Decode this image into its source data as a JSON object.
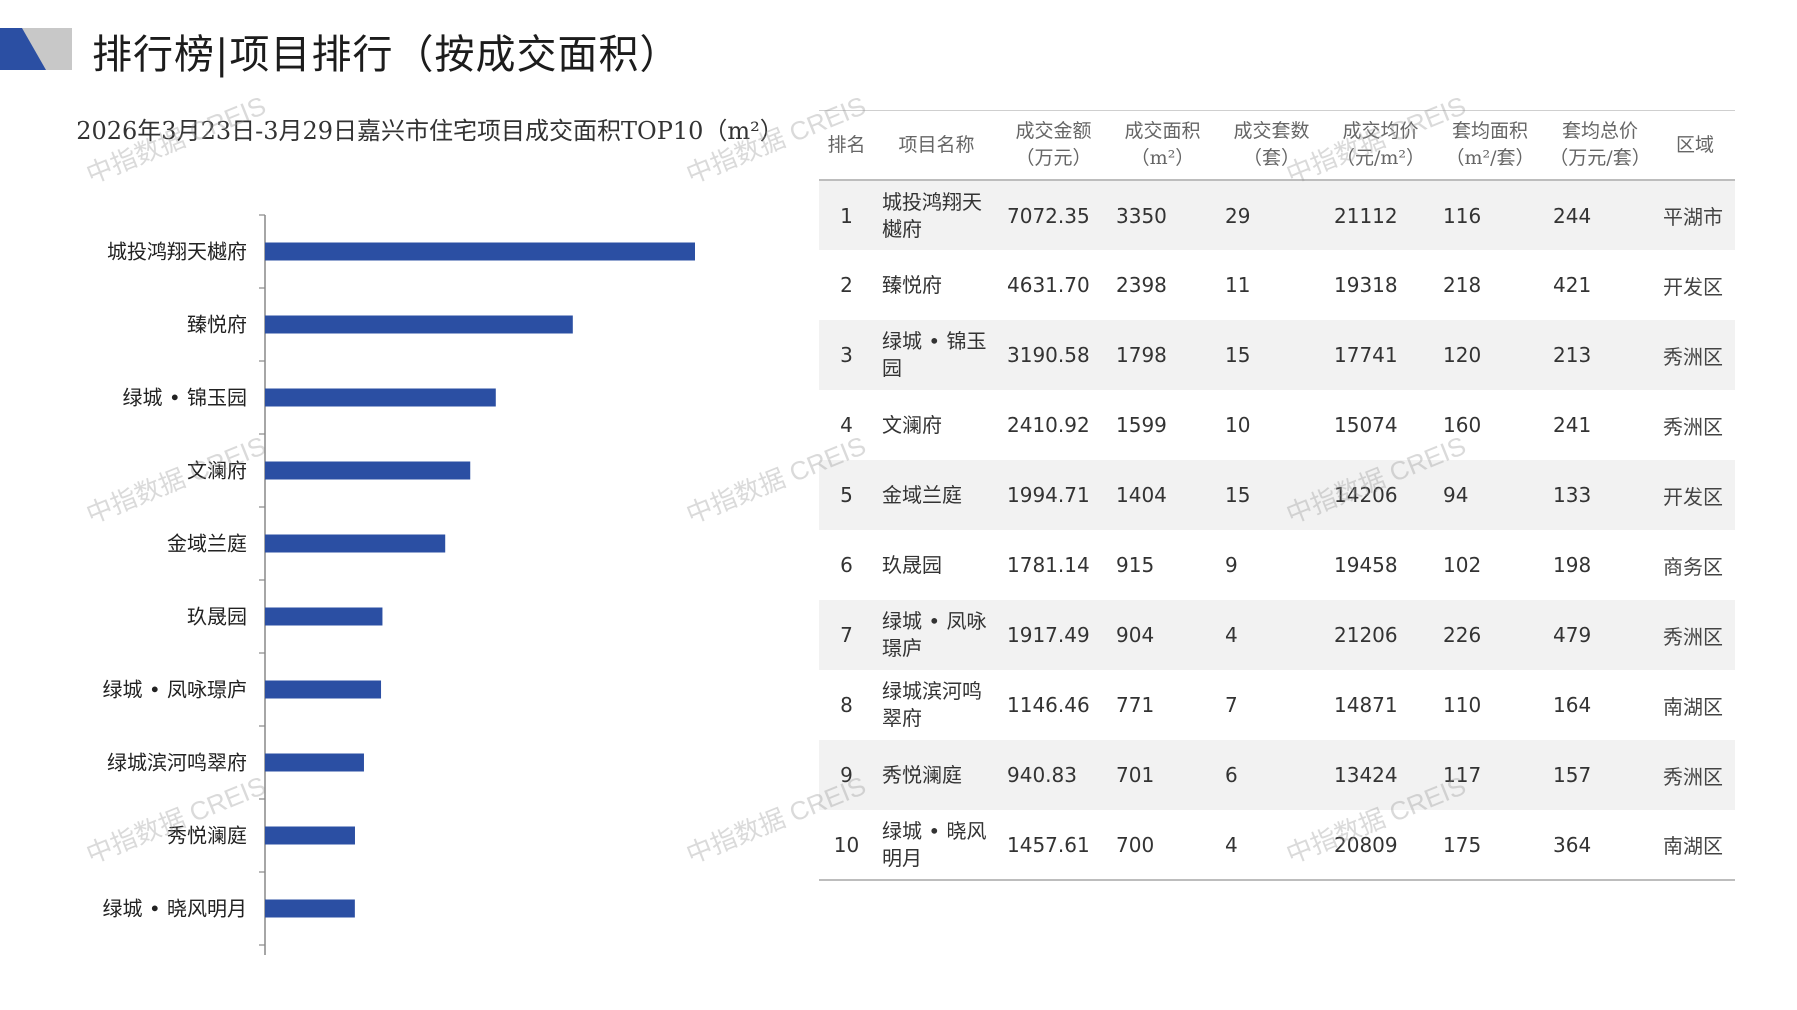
{
  "header": {
    "title": "排行榜|项目排行（按成交面积）",
    "colors": {
      "blue": "#2b4fa3",
      "gray": "#c8c8c8"
    }
  },
  "chart_data": {
    "type": "bar",
    "orientation": "horizontal",
    "title": "2026年3月23日-3月29日嘉兴市住宅项目成交面积TOP10（m²）",
    "categories": [
      "城投鸿翔天樾府",
      "臻悦府",
      "绿城 • 锦玉园",
      "文澜府",
      "金域兰庭",
      "玖晟园",
      "绿城 • 凤咏璟庐",
      "绿城滨河鸣翠府",
      "秀悦澜庭",
      "绿城 • 晓风明月"
    ],
    "values": [
      3350,
      2398,
      1798,
      1599,
      1404,
      915,
      904,
      771,
      701,
      700
    ],
    "bar_color": "#2b4fa3",
    "grid": false
  },
  "table": {
    "headers": [
      {
        "key": "rank",
        "label": "排名"
      },
      {
        "key": "name",
        "label": "项目名称"
      },
      {
        "key": "amount",
        "label": "成交金额（万元）"
      },
      {
        "key": "area",
        "label": "成交面积（m²）"
      },
      {
        "key": "units",
        "label": "成交套数（套）"
      },
      {
        "key": "price",
        "label": "成交均价（元/m²）"
      },
      {
        "key": "avg_area",
        "label": "套均面积（m²/套）"
      },
      {
        "key": "avg_total",
        "label": "套均总价（万元/套）"
      },
      {
        "key": "district",
        "label": "区域"
      }
    ],
    "rows": [
      {
        "rank": "1",
        "name": "城投鸿翔天樾府",
        "amount": "7072.35",
        "area": "3350",
        "units": "29",
        "price": "21112",
        "avg_area": "116",
        "avg_total": "244",
        "district": "平湖市"
      },
      {
        "rank": "2",
        "name": "臻悦府",
        "amount": "4631.70",
        "area": "2398",
        "units": "11",
        "price": "19318",
        "avg_area": "218",
        "avg_total": "421",
        "district": "开发区"
      },
      {
        "rank": "3",
        "name": "绿城 • 锦玉园",
        "amount": "3190.58",
        "area": "1798",
        "units": "15",
        "price": "17741",
        "avg_area": "120",
        "avg_total": "213",
        "district": "秀洲区"
      },
      {
        "rank": "4",
        "name": "文澜府",
        "amount": "2410.92",
        "area": "1599",
        "units": "10",
        "price": "15074",
        "avg_area": "160",
        "avg_total": "241",
        "district": "秀洲区"
      },
      {
        "rank": "5",
        "name": "金域兰庭",
        "amount": "1994.71",
        "area": "1404",
        "units": "15",
        "price": "14206",
        "avg_area": "94",
        "avg_total": "133",
        "district": "开发区"
      },
      {
        "rank": "6",
        "name": "玖晟园",
        "amount": "1781.14",
        "area": "915",
        "units": "9",
        "price": "19458",
        "avg_area": "102",
        "avg_total": "198",
        "district": "商务区"
      },
      {
        "rank": "7",
        "name": "绿城 • 凤咏璟庐",
        "amount": "1917.49",
        "area": "904",
        "units": "4",
        "price": "21206",
        "avg_area": "226",
        "avg_total": "479",
        "district": "秀洲区"
      },
      {
        "rank": "8",
        "name": "绿城滨河鸣翠府",
        "amount": "1146.46",
        "area": "771",
        "units": "7",
        "price": "14871",
        "avg_area": "110",
        "avg_total": "164",
        "district": "南湖区"
      },
      {
        "rank": "9",
        "name": "秀悦澜庭",
        "amount": "940.83",
        "area": "701",
        "units": "6",
        "price": "13424",
        "avg_area": "117",
        "avg_total": "157",
        "district": "秀洲区"
      },
      {
        "rank": "10",
        "name": "绿城 • 晓风明月",
        "amount": "1457.61",
        "area": "700",
        "units": "4",
        "price": "20809",
        "avg_area": "175",
        "avg_total": "364",
        "district": "南湖区"
      }
    ]
  },
  "watermark": {
    "text": "中指数据 CREIS"
  }
}
